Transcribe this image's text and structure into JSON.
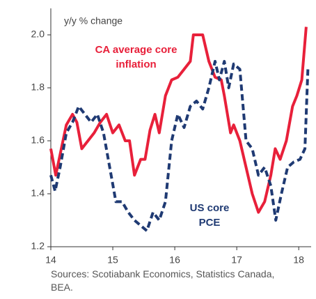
{
  "chart_data": {
    "type": "line",
    "y_label": "y/y % change",
    "source": "Sources: Scotiabank Economics, Statistics Canada, BEA.",
    "xlim": [
      14,
      18.2
    ],
    "xticks": [
      14,
      15,
      16,
      17,
      18
    ],
    "ylim": [
      1.2,
      2.1
    ],
    "yticks": [
      1.2,
      1.4,
      1.6,
      1.8,
      {
        "value": 2.0,
        "label": "2.0"
      }
    ],
    "series": [
      {
        "name": "CA average core inflation",
        "color": "#e8203a",
        "dash": false,
        "x": [
          14.0,
          14.08,
          14.17,
          14.25,
          14.35,
          14.42,
          14.5,
          14.6,
          14.7,
          14.8,
          14.9,
          15.0,
          15.1,
          15.2,
          15.27,
          15.35,
          15.45,
          15.52,
          15.6,
          15.68,
          15.75,
          15.85,
          15.95,
          16.05,
          16.15,
          16.25,
          16.3,
          16.45,
          16.55,
          16.65,
          16.75,
          16.8,
          16.9,
          16.95,
          17.05,
          17.15,
          17.25,
          17.35,
          17.45,
          17.55,
          17.62,
          17.7,
          17.8,
          17.9,
          17.97,
          18.05,
          18.12
        ],
        "values": [
          1.57,
          1.47,
          1.57,
          1.66,
          1.7,
          1.67,
          1.57,
          1.6,
          1.63,
          1.67,
          1.7,
          1.63,
          1.66,
          1.6,
          1.6,
          1.47,
          1.53,
          1.53,
          1.64,
          1.7,
          1.63,
          1.77,
          1.83,
          1.84,
          1.87,
          1.9,
          2.0,
          2.0,
          1.9,
          1.84,
          1.83,
          1.77,
          1.63,
          1.66,
          1.6,
          1.5,
          1.4,
          1.33,
          1.37,
          1.47,
          1.57,
          1.53,
          1.6,
          1.73,
          1.77,
          1.83,
          2.03
        ]
      },
      {
        "name": "US core PCE",
        "color": "#1f3a73",
        "dash": true,
        "x": [
          14.0,
          14.07,
          14.15,
          14.25,
          14.35,
          14.45,
          14.55,
          14.65,
          14.75,
          14.85,
          14.95,
          15.05,
          15.15,
          15.25,
          15.35,
          15.45,
          15.55,
          15.65,
          15.75,
          15.85,
          15.95,
          16.05,
          16.15,
          16.25,
          16.35,
          16.45,
          16.55,
          16.65,
          16.72,
          16.8,
          16.87,
          16.95,
          17.05,
          17.15,
          17.25,
          17.35,
          17.45,
          17.55,
          17.63,
          17.72,
          17.82,
          17.92,
          18.02,
          18.1,
          18.15
        ],
        "values": [
          1.47,
          1.41,
          1.5,
          1.63,
          1.67,
          1.73,
          1.7,
          1.67,
          1.7,
          1.63,
          1.5,
          1.37,
          1.37,
          1.33,
          1.3,
          1.28,
          1.26,
          1.33,
          1.3,
          1.37,
          1.6,
          1.7,
          1.65,
          1.73,
          1.75,
          1.72,
          1.8,
          1.9,
          1.83,
          1.9,
          1.8,
          1.89,
          1.87,
          1.6,
          1.57,
          1.47,
          1.5,
          1.43,
          1.3,
          1.4,
          1.5,
          1.52,
          1.53,
          1.57,
          1.88
        ]
      }
    ]
  }
}
